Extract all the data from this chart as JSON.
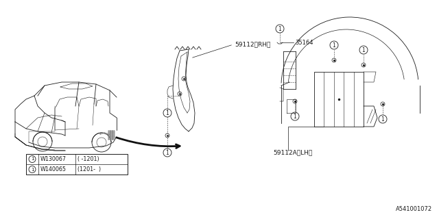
{
  "bg_color": "#ffffff",
  "line_color": "#1a1a1a",
  "gray_color": "#888888",
  "watermark": "A541001072",
  "label_rh": "59112〈RH〉",
  "label_lh": "59112A〈LH〉",
  "label_35164": "35164",
  "label_w130067": "W130067",
  "label_w140065": "W140065",
  "label_date1": "( -1201)",
  "label_date2": "(1201-  )",
  "font_size_labels": 6.5,
  "font_size_watermark": 6,
  "font_size_legend": 5.8
}
